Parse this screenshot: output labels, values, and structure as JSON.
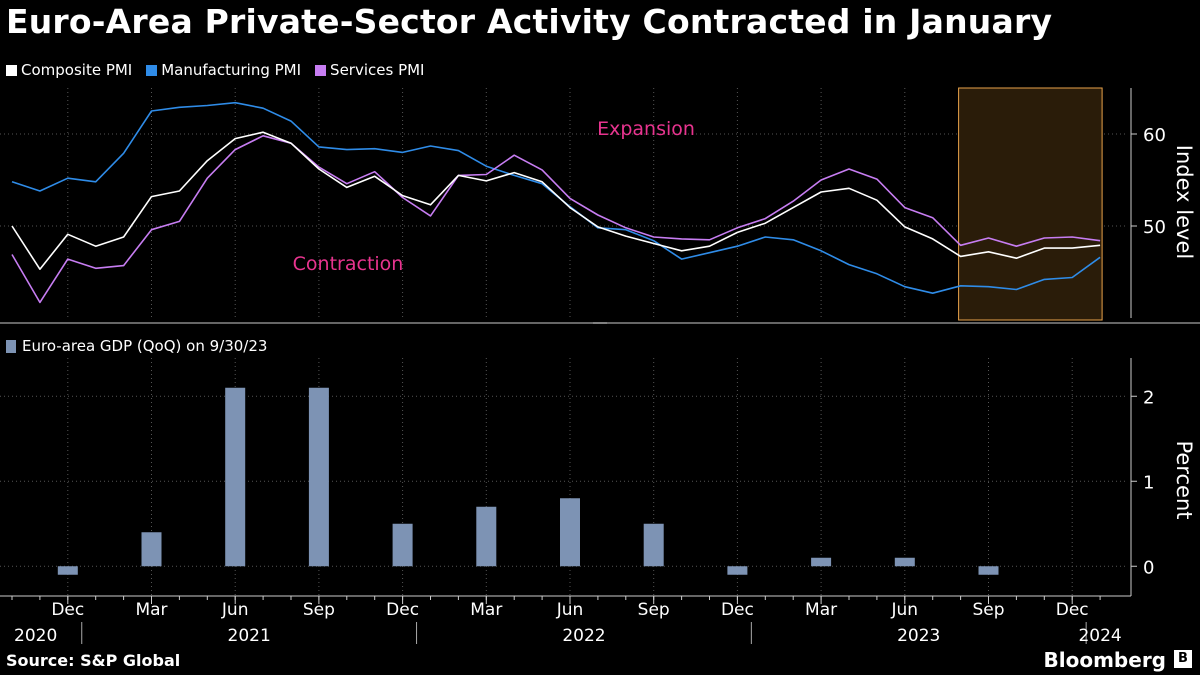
{
  "title": "Euro-Area Private-Sector Activity Contracted in January",
  "legend": {
    "composite": "Composite PMI",
    "manufacturing": "Manufacturing PMI",
    "services": "Services PMI",
    "gdp": "Euro-area GDP (QoQ) on 9/30/23"
  },
  "colors": {
    "composite": "#ffffff",
    "manufacturing": "#2f8ce8",
    "services": "#c77df2",
    "gdp": "#7d93b4",
    "annotation": "#e8348f",
    "highlight_fill": "#2a1c09",
    "highlight_border": "#e8a24a"
  },
  "source": "Source: S&P Global",
  "brand": "Bloomberg",
  "chart_data": [
    {
      "type": "line",
      "x": [
        "2020-10",
        "2020-11",
        "2020-12",
        "2021-01",
        "2021-02",
        "2021-03",
        "2021-04",
        "2021-05",
        "2021-06",
        "2021-07",
        "2021-08",
        "2021-09",
        "2021-10",
        "2021-11",
        "2021-12",
        "2022-01",
        "2022-02",
        "2022-03",
        "2022-04",
        "2022-05",
        "2022-06",
        "2022-07",
        "2022-08",
        "2022-09",
        "2022-10",
        "2022-11",
        "2022-12",
        "2023-01",
        "2023-02",
        "2023-03",
        "2023-04",
        "2023-05",
        "2023-06",
        "2023-07",
        "2023-08",
        "2023-09",
        "2023-10",
        "2023-11",
        "2023-12",
        "2024-01"
      ],
      "series": [
        {
          "name": "Composite PMI",
          "key": "composite",
          "values": [
            50.0,
            45.3,
            49.1,
            47.8,
            48.8,
            53.2,
            53.8,
            57.1,
            59.5,
            60.2,
            59.0,
            56.2,
            54.2,
            55.4,
            53.3,
            52.3,
            55.5,
            54.9,
            55.8,
            54.8,
            52.0,
            49.9,
            48.9,
            48.1,
            47.3,
            47.8,
            49.3,
            50.3,
            52.0,
            53.7,
            54.1,
            52.8,
            49.9,
            48.6,
            46.7,
            47.2,
            46.5,
            47.6,
            47.6,
            47.9
          ]
        },
        {
          "name": "Manufacturing PMI",
          "key": "manufacturing",
          "values": [
            54.8,
            53.8,
            55.2,
            54.8,
            57.9,
            62.5,
            62.9,
            63.1,
            63.4,
            62.8,
            61.4,
            58.6,
            58.3,
            58.4,
            58.0,
            58.7,
            58.2,
            56.5,
            55.5,
            54.6,
            52.1,
            49.8,
            49.6,
            48.4,
            46.4,
            47.1,
            47.8,
            48.8,
            48.5,
            47.3,
            45.8,
            44.8,
            43.4,
            42.7,
            43.5,
            43.4,
            43.1,
            44.2,
            44.4,
            46.6
          ]
        },
        {
          "name": "Services PMI",
          "key": "services",
          "values": [
            46.9,
            41.7,
            46.4,
            45.4,
            45.7,
            49.6,
            50.5,
            55.2,
            58.3,
            59.8,
            59.0,
            56.4,
            54.6,
            55.9,
            53.1,
            51.1,
            55.5,
            55.6,
            57.7,
            56.1,
            53.0,
            51.2,
            49.8,
            48.8,
            48.6,
            48.5,
            49.8,
            50.8,
            52.7,
            55.0,
            56.2,
            55.1,
            52.0,
            50.9,
            47.9,
            48.7,
            47.8,
            48.7,
            48.8,
            48.4
          ]
        }
      ],
      "ylim": [
        40,
        65
      ],
      "yticks": [
        "50",
        "60"
      ],
      "ylabel": "Index level",
      "annotations": [
        "Expansion",
        "Contraction"
      ],
      "highlight_range": [
        "2023-08",
        "2024-01"
      ]
    },
    {
      "type": "bar",
      "title": "Euro-area GDP (QoQ) on 9/30/23",
      "x": [
        "2020-12",
        "2021-03",
        "2021-06",
        "2021-09",
        "2021-12",
        "2022-03",
        "2022-06",
        "2022-09",
        "2022-12",
        "2023-03",
        "2023-06",
        "2023-09"
      ],
      "values": [
        -0.1,
        0.4,
        2.1,
        2.1,
        0.5,
        0.7,
        0.8,
        0.5,
        -0.1,
        0.1,
        0.1,
        -0.1
      ],
      "ylim": [
        -0.35,
        2.45
      ],
      "yticks": [
        "0",
        "1",
        "2"
      ],
      "ylabel": "Percent"
    }
  ],
  "xaxis": {
    "month_labels": [
      "Dec",
      "Mar",
      "Jun",
      "Sep",
      "Dec",
      "Mar",
      "Jun",
      "Sep",
      "Dec",
      "Mar",
      "Jun",
      "Sep",
      "Dec"
    ],
    "year_labels": [
      "2020",
      "2021",
      "2022",
      "2023",
      "2024"
    ]
  }
}
